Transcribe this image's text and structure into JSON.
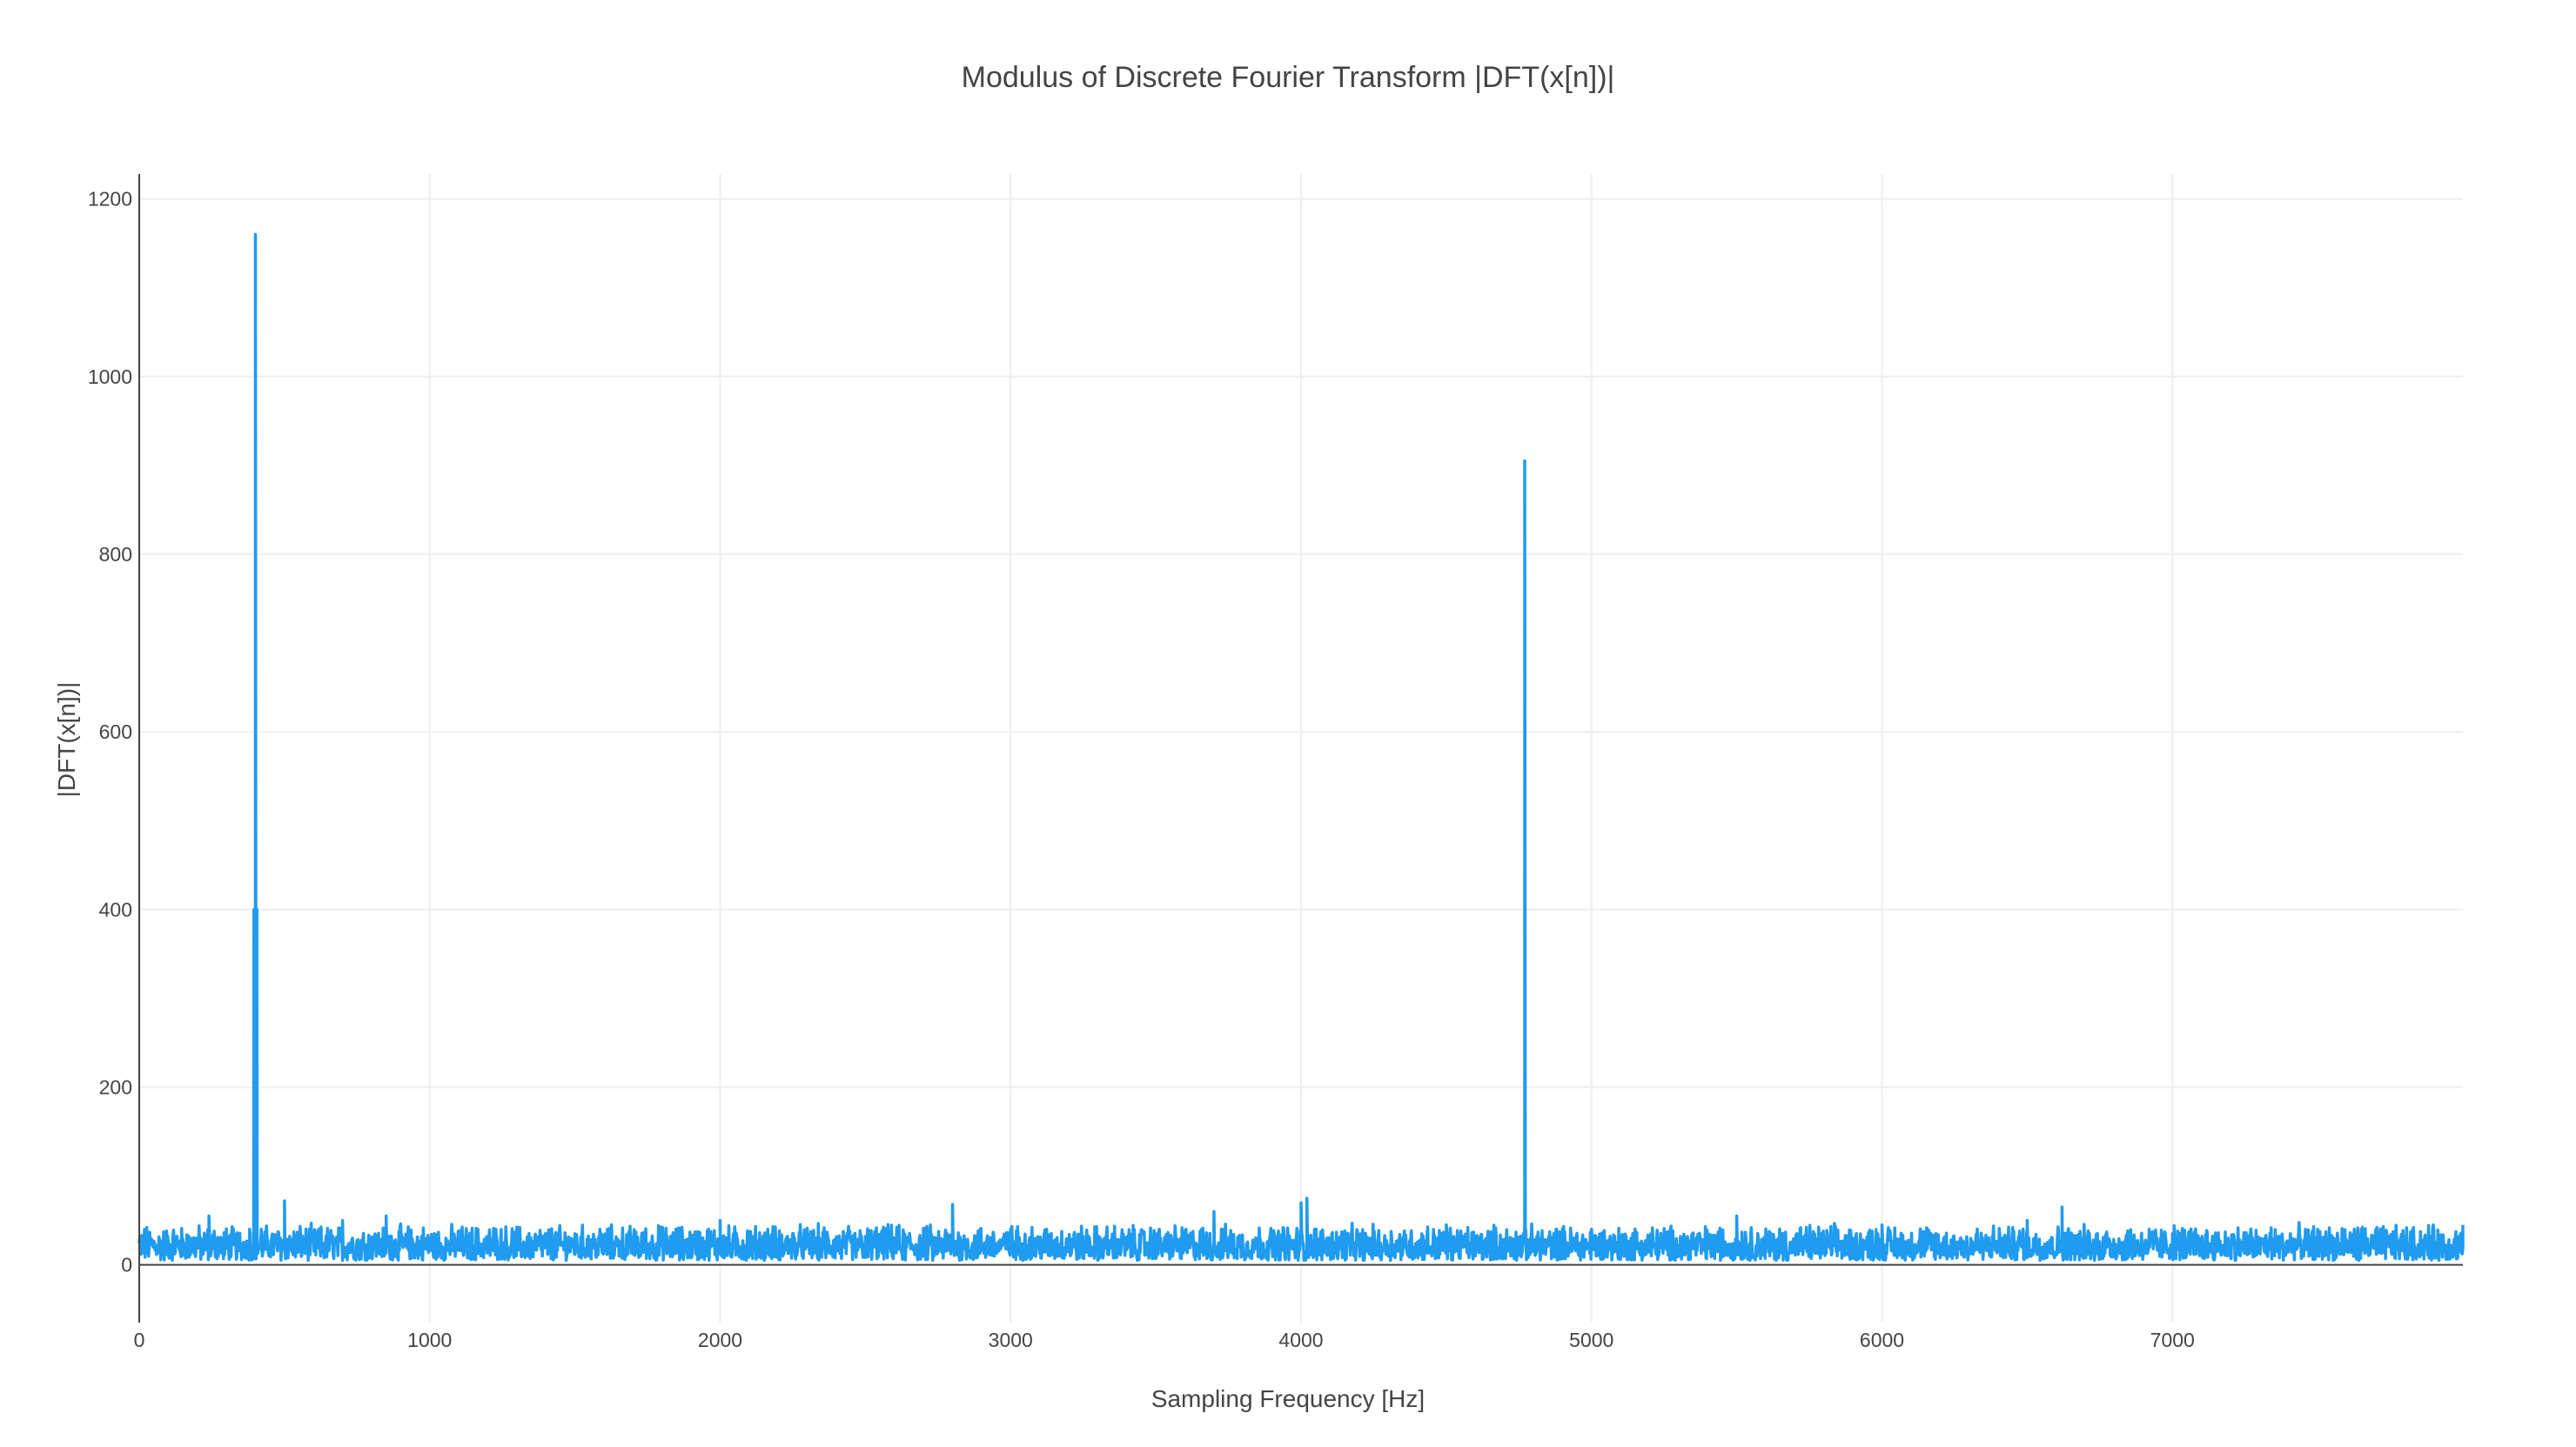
{
  "chart_data": {
    "type": "line",
    "title": "Modulus of Discrete Fourier Transform |DFT(x[n])|",
    "xlabel": "Sampling Frequency [Hz]",
    "ylabel": "|DFT(x[n])|",
    "xlim": [
      0,
      8000
    ],
    "ylim": [
      -65,
      1228
    ],
    "x_ticks": [
      0,
      1000,
      2000,
      3000,
      4000,
      5000,
      6000,
      7000
    ],
    "y_ticks": [
      0,
      200,
      400,
      600,
      800,
      1000,
      1200
    ],
    "grid": true,
    "legend": "none",
    "color": "#1f9bf0",
    "noise_floor": {
      "mean": 22,
      "min": 5,
      "max": 48,
      "x_range": [
        0,
        8000
      ]
    },
    "series": [
      {
        "x": [
          0,
          120,
          240,
          300,
          380,
          395,
          400,
          405,
          420,
          500,
          700,
          850,
          1000,
          1500,
          2000,
          2500,
          2800,
          3000,
          3500,
          3700,
          4000,
          4020,
          4500,
          4750,
          4770,
          4790,
          5000,
          5500,
          6000,
          6500,
          6620,
          7000,
          7500,
          8000
        ],
        "values": [
          25,
          22,
          55,
          30,
          40,
          400,
          1160,
          400,
          40,
          72,
          50,
          55,
          30,
          35,
          50,
          32,
          68,
          40,
          35,
          60,
          70,
          75,
          45,
          30,
          905,
          30,
          40,
          55,
          45,
          50,
          65,
          35,
          40,
          45
        ]
      }
    ]
  }
}
